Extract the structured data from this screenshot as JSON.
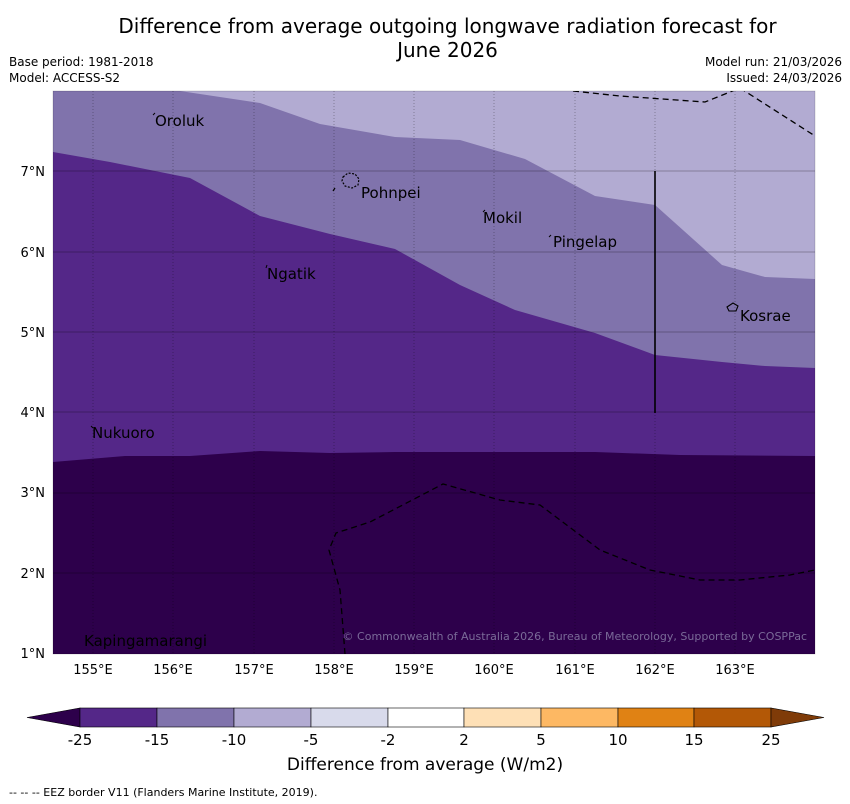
{
  "title_line1": "Difference from average outgoing longwave radiation forecast for",
  "title_line2": "June 2026",
  "base_period": "Base period: 1981-2018",
  "model": "Model: ACCESS-S2",
  "model_run": "Model run: 21/03/2026",
  "issued": "Issued: 24/03/2026",
  "map": {
    "latitude_ticks": [
      "1°N",
      "2°N",
      "3°N",
      "4°N",
      "5°N",
      "6°N",
      "7°N"
    ],
    "longitude_ticks": [
      "155°E",
      "156°E",
      "157°E",
      "158°E",
      "159°E",
      "160°E",
      "161°E",
      "162°E",
      "163°E"
    ],
    "places": {
      "oroluk": "Oroluk",
      "pohnpei": "Pohnpei",
      "mokil": "Mokil",
      "pingelap": "Pingelap",
      "ngatik": "Ngatik",
      "kosrae": "Kosrae",
      "nukuoro": "Nukuoro",
      "kapingamarangi": "Kapingamarangi"
    },
    "copyright": "© Commonwealth of Australia 2026, Bureau of Meteorology, Supported by COSPPac"
  },
  "colorbar": {
    "labels": [
      "-25",
      "-15",
      "-10",
      "-5",
      "-2",
      "2",
      "5",
      "10",
      "15",
      "25"
    ],
    "colors": [
      "#2d004b",
      "#542788",
      "#8073ac",
      "#b2abd2",
      "#d8daeb",
      "#ffffff",
      "#fee0b6",
      "#fdb863",
      "#e08214",
      "#b35806",
      "#7f3b08"
    ],
    "title": "Difference from average (W/m2)"
  },
  "footnote": "--  --  -- EEZ border V11 (Flanders Marine Institute, 2019)."
}
